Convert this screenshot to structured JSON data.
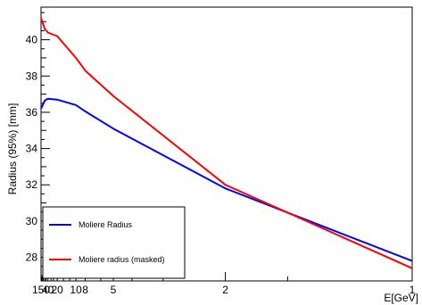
{
  "chart_data": {
    "type": "line",
    "title": "",
    "xlabel": "E[GeV]",
    "ylabel": "Radius (95%) [mm]",
    "x_scale": "reciprocal",
    "xlim": [
      150,
      1
    ],
    "ylim": [
      26.7,
      41.8
    ],
    "x_ticks": [
      150,
      40,
      20,
      10,
      8,
      5,
      2,
      1
    ],
    "y_ticks": [
      28,
      30,
      32,
      34,
      36,
      38,
      40
    ],
    "legend_position": "bottom-left",
    "grid": false,
    "series": [
      {
        "name": "Moliere Radius",
        "color": "#0000ff",
        "x": [
          150,
          100,
          60,
          40,
          20,
          10,
          8,
          5,
          2,
          1
        ],
        "y": [
          36.2,
          36.35,
          36.65,
          36.75,
          36.7,
          36.4,
          36.05,
          35.1,
          31.8,
          27.8
        ]
      },
      {
        "name": "Moliere radius (masked)",
        "color": "#ff0000",
        "x": [
          150,
          100,
          60,
          40,
          20,
          10,
          8,
          5,
          2,
          1
        ],
        "y": [
          41.2,
          41.0,
          40.6,
          40.4,
          40.2,
          39.0,
          38.3,
          36.9,
          32.0,
          27.4
        ]
      }
    ]
  }
}
